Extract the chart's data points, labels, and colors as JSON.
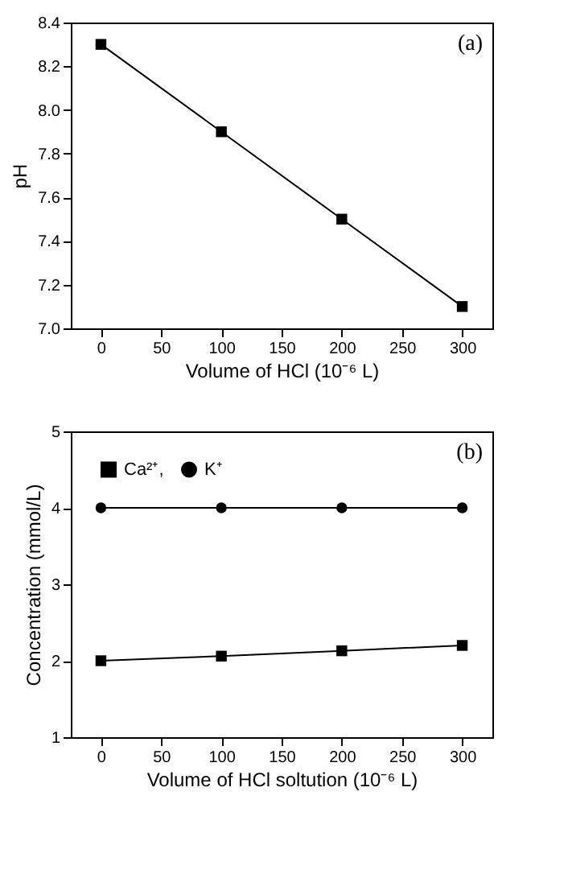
{
  "chart_data": [
    {
      "type": "line",
      "x": [
        0,
        100,
        200,
        300
      ],
      "xlabel": "Volume of HCl (10⁻⁶ L)",
      "ylabel": "pH",
      "annotations": [
        "(a)"
      ],
      "xlim": [
        -25,
        325
      ],
      "xticks": [
        0,
        50,
        100,
        150,
        200,
        250,
        300
      ],
      "ylim": [
        7.0,
        8.4
      ],
      "yticks": [
        {
          "value": 7,
          "label": "7.0"
        },
        7.2,
        7.4,
        7.6,
        7.8,
        {
          "value": 8,
          "label": "8.0"
        },
        8.2,
        8.4
      ],
      "grid": false,
      "series": [
        {
          "color": "#000000",
          "marker": "square",
          "values": [
            8.3,
            7.9,
            7.5,
            7.1
          ]
        }
      ]
    },
    {
      "type": "line",
      "x": [
        0,
        100,
        200,
        300
      ],
      "xlabel": "Volume of HCl soltution (10⁻⁶ L)",
      "ylabel": "Concentration (mmol/L)",
      "annotations": [
        "(b)"
      ],
      "xlim": [
        -25,
        325
      ],
      "xticks": [
        0,
        50,
        100,
        150,
        200,
        250,
        300
      ],
      "ylim": [
        1,
        5
      ],
      "yticks": [
        1,
        2,
        3,
        4,
        5
      ],
      "grid": false,
      "legend": "top left",
      "series": [
        {
          "name": "Ca²⁺,",
          "color": "#000000",
          "marker": "square",
          "values": [
            2.0,
            2.06,
            2.13,
            2.2
          ]
        },
        {
          "name": "K⁺",
          "color": "#000000",
          "marker": "circle",
          "values": [
            4.0,
            4.0,
            4.0,
            4.0
          ]
        }
      ]
    }
  ]
}
